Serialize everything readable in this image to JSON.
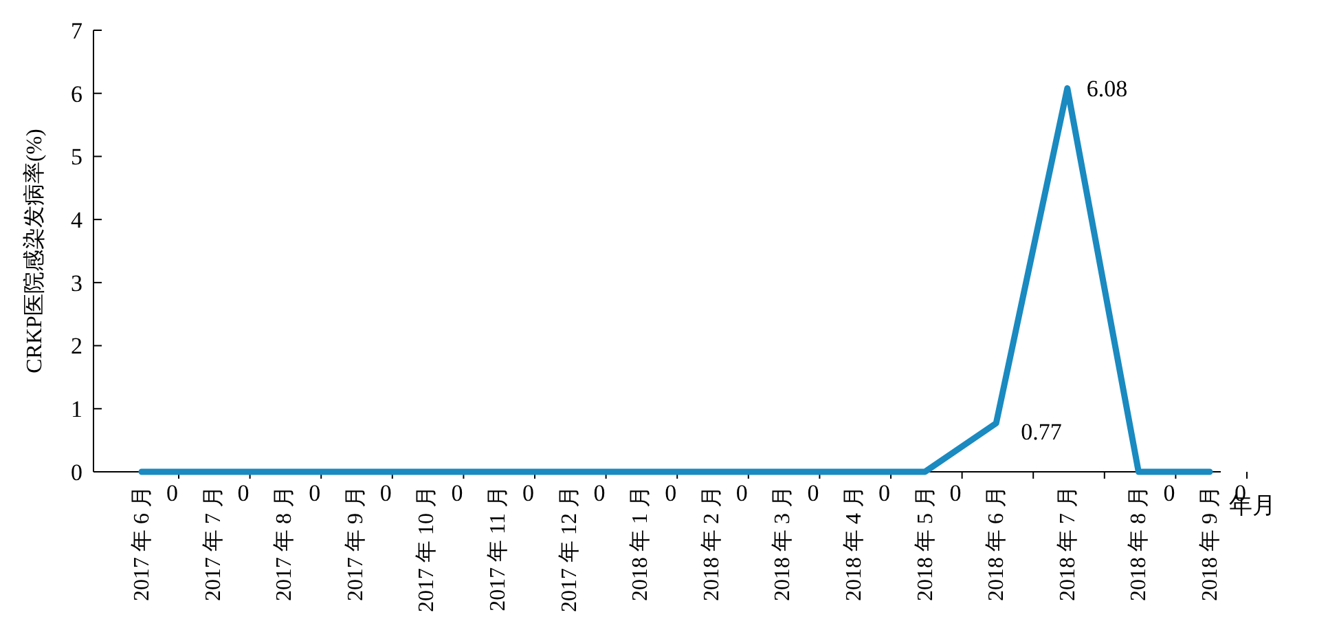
{
  "chart_data": {
    "type": "line",
    "xlabel": "年月",
    "ylabel": "CRKP医院感染发病率(%)",
    "categories": [
      "2017 年 6 月",
      "2017 年 7 月",
      "2017 年 8 月",
      "2017 年 9 月",
      "2017 年 10 月",
      "2017 年 11 月",
      "2017 年 12 月",
      "2018 年 1 月",
      "2018 年 2 月",
      "2018 年 3 月",
      "2018 年 4 月",
      "2018 年 5 月",
      "2018 年 6 月",
      "2018 年 7 月",
      "2018 年 8 月",
      "2018 年 9 月"
    ],
    "series": [
      {
        "color": "#1a8ac0",
        "values": [
          0,
          0,
          0,
          0,
          0,
          0,
          0,
          0,
          0,
          0,
          0,
          0,
          0.77,
          6.08,
          0,
          0
        ]
      }
    ],
    "ylim": [
      0,
      7
    ],
    "yticks": [
      0,
      1,
      2,
      3,
      4,
      5,
      6,
      7
    ],
    "data_labels": true,
    "grid": false,
    "marker": "none",
    "line_style": "solid"
  }
}
